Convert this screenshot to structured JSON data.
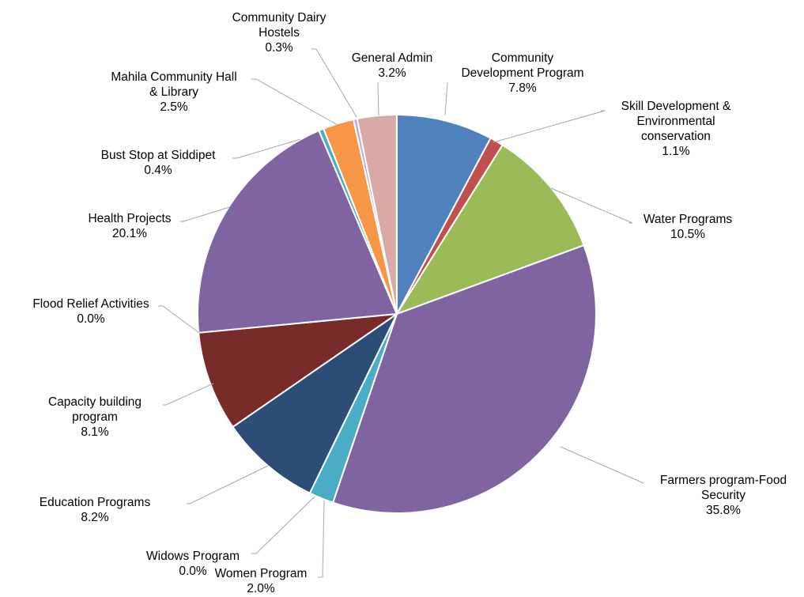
{
  "chart_data": {
    "type": "pie",
    "slices": [
      {
        "label": [
          "Community",
          "Development Program"
        ],
        "value_label": "7.8%",
        "value": 7.8,
        "color": "#4f81bd"
      },
      {
        "label": [
          "Skill Development &",
          "Environmental",
          "conservation"
        ],
        "value_label": "1.1%",
        "value": 1.1,
        "color": "#c0504d"
      },
      {
        "label": [
          "Water Programs"
        ],
        "value_label": "10.5%",
        "value": 10.5,
        "color": "#9bbb59"
      },
      {
        "label": [
          "Farmers program-Food",
          "Security"
        ],
        "value_label": "35.8%",
        "value": 35.8,
        "color": "#8064a2"
      },
      {
        "label": [
          "Women Program"
        ],
        "value_label": "2.0%",
        "value": 2.0,
        "color": "#4bacc6"
      },
      {
        "label": [
          "Widows Program"
        ],
        "value_label": "0.0%",
        "value": 0.0,
        "color": "#f79646"
      },
      {
        "label": [
          "Education Programs"
        ],
        "value_label": "8.2%",
        "value": 8.2,
        "color": "#2c4d75"
      },
      {
        "label": [
          "Capacity building",
          "program"
        ],
        "value_label": "8.1%",
        "value": 8.1,
        "color": "#772c2a"
      },
      {
        "label": [
          "Flood Relief Activities"
        ],
        "value_label": "0.0%",
        "value": 0.0,
        "color": "#5f7530"
      },
      {
        "label": [
          "Health Projects"
        ],
        "value_label": "20.1%",
        "value": 20.1,
        "color": "#8064a2"
      },
      {
        "label": [
          "Bust Stop at Siddipet"
        ],
        "value_label": "0.4%",
        "value": 0.4,
        "color": "#4bacc6"
      },
      {
        "label": [
          "Mahila Community Hall",
          "& Library"
        ],
        "value_label": "2.5%",
        "value": 2.5,
        "color": "#f79646"
      },
      {
        "label": [
          "Community Dairy",
          "Hostels"
        ],
        "value_label": "0.3%",
        "value": 0.3,
        "color": "#b7aed1"
      },
      {
        "label": [
          "General Admin"
        ],
        "value_label": "3.2%",
        "value": 3.2,
        "color": "#d9a9a8"
      }
    ],
    "legend": "none (data labels with leader lines)"
  }
}
